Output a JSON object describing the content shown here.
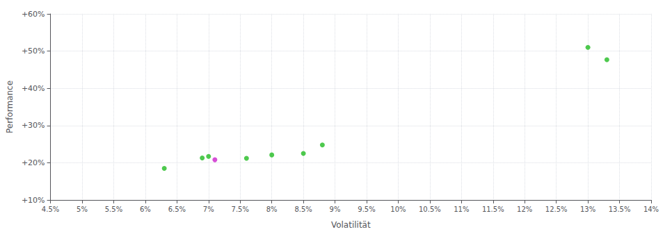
{
  "chart_data": {
    "type": "scatter",
    "xlabel": "Volatilität",
    "ylabel": "Performance",
    "xlim": [
      0.045,
      0.14
    ],
    "ylim": [
      0.1,
      0.6
    ],
    "xticks": [
      {
        "value": 0.045,
        "label": "4.5%"
      },
      {
        "value": 0.05,
        "label": "5%"
      },
      {
        "value": 0.055,
        "label": "5.5%"
      },
      {
        "value": 0.06,
        "label": "6%"
      },
      {
        "value": 0.065,
        "label": "6.5%"
      },
      {
        "value": 0.07,
        "label": "7%"
      },
      {
        "value": 0.075,
        "label": "7.5%"
      },
      {
        "value": 0.08,
        "label": "8%"
      },
      {
        "value": 0.085,
        "label": "8.5%"
      },
      {
        "value": 0.09,
        "label": "9%"
      },
      {
        "value": 0.095,
        "label": "9.5%"
      },
      {
        "value": 0.1,
        "label": "10%"
      },
      {
        "value": 0.105,
        "label": "10.5%"
      },
      {
        "value": 0.11,
        "label": "11%"
      },
      {
        "value": 0.115,
        "label": "11.5%"
      },
      {
        "value": 0.12,
        "label": "12%"
      },
      {
        "value": 0.125,
        "label": "12.5%"
      },
      {
        "value": 0.13,
        "label": "13%"
      },
      {
        "value": 0.135,
        "label": "13.5%"
      },
      {
        "value": 0.14,
        "label": "14%"
      }
    ],
    "yticks": [
      {
        "value": 0.1,
        "label": "+10%"
      },
      {
        "value": 0.2,
        "label": "+20%"
      },
      {
        "value": 0.3,
        "label": "+30%"
      },
      {
        "value": 0.4,
        "label": "+40%"
      },
      {
        "value": 0.5,
        "label": "+50%"
      },
      {
        "value": 0.6,
        "label": "+60%"
      }
    ],
    "grid": true,
    "series": [
      {
        "color": "#22bb22",
        "x": [
          0.063,
          0.069,
          0.07,
          0.076,
          0.08,
          0.085,
          0.088,
          0.13,
          0.133
        ],
        "values": [
          0.185,
          0.213,
          0.217,
          0.212,
          0.221,
          0.225,
          0.248,
          0.51,
          0.477
        ]
      },
      {
        "color": "#cc22cc",
        "x": [
          0.071
        ],
        "values": [
          0.208
        ]
      }
    ]
  }
}
